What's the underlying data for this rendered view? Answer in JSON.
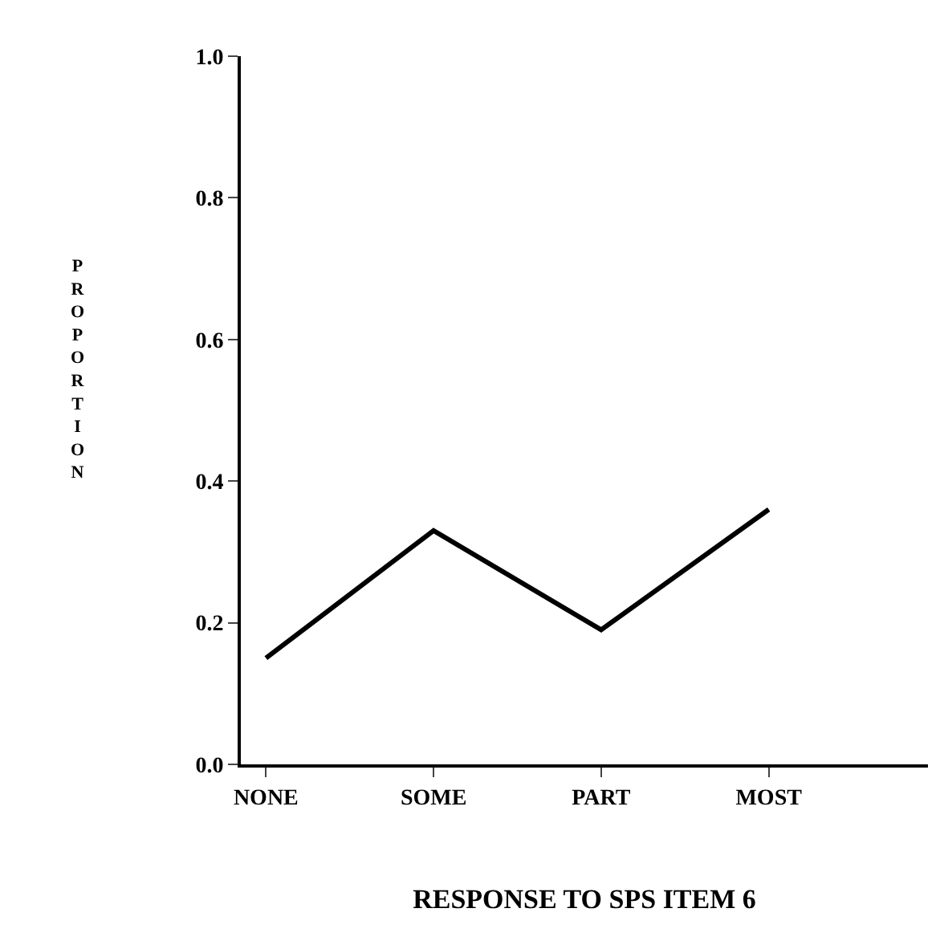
{
  "chart_data": {
    "type": "line",
    "xlabel": "RESPONSE TO SPS ITEM 6",
    "ylabel": "PROPORTION",
    "categories": [
      "NONE",
      "SOME",
      "PART",
      "MOST"
    ],
    "series": [
      {
        "color": "#000000",
        "values": [
          0.15,
          0.33,
          0.19,
          0.36
        ]
      }
    ],
    "ylim": [
      0,
      1
    ],
    "yticks": [
      {
        "value": 0,
        "label": "0.0"
      },
      0.2,
      0.4,
      0.6,
      0.8,
      {
        "value": 1,
        "label": "1.0"
      }
    ],
    "marker": "none",
    "line_style": "solid"
  }
}
